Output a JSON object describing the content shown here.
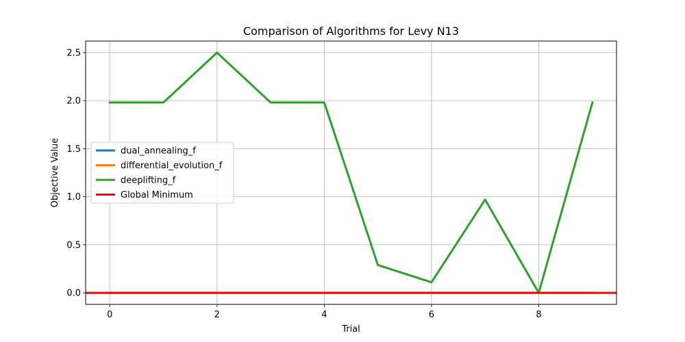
{
  "chart_data": {
    "type": "line",
    "title": "Comparison of Algorithms for Levy N13",
    "xlabel": "Trial",
    "ylabel": "Objective Value",
    "xlim": [
      -0.45,
      9.45
    ],
    "ylim": [
      -0.12,
      2.62
    ],
    "xticks": [
      0,
      2,
      4,
      6,
      8
    ],
    "yticks": [
      0.0,
      0.5,
      1.0,
      1.5,
      2.0,
      2.5
    ],
    "xtick_labels": [
      "0",
      "2",
      "4",
      "6",
      "8"
    ],
    "ytick_labels": [
      "0.0",
      "0.5",
      "1.0",
      "1.5",
      "2.0",
      "2.5"
    ],
    "grid": true,
    "legend_position": "center-left",
    "x": [
      0,
      1,
      2,
      3,
      4,
      5,
      6,
      7,
      8,
      9
    ],
    "series": [
      {
        "name": "dual_annealing_f",
        "color": "#1f77b4",
        "values": [
          0,
          0,
          0,
          0,
          0,
          0,
          0,
          0,
          0,
          0
        ]
      },
      {
        "name": "differential_evolution_f",
        "color": "#ff7f0e",
        "values": [
          0,
          0,
          0,
          0,
          0,
          0,
          0,
          0,
          0,
          0
        ]
      },
      {
        "name": "deeplifting_f",
        "color": "#2ca02c",
        "values": [
          1.98,
          1.98,
          2.5,
          1.98,
          1.98,
          0.29,
          0.11,
          0.97,
          0.0,
          1.98
        ]
      }
    ],
    "reference_line": {
      "name": "Global Minimum",
      "color": "#ff0000",
      "value": 0
    }
  }
}
